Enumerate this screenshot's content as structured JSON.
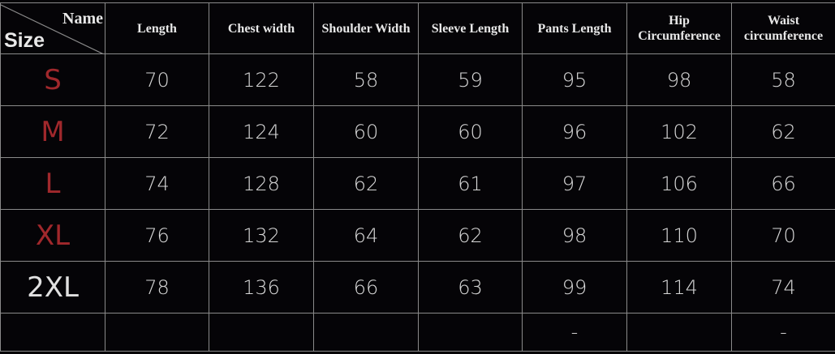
{
  "header": {
    "corner_name": "Name",
    "corner_size": "Size",
    "columns": [
      "Length",
      "Chest width",
      "Shoulder Width",
      "Sleeve Length",
      "Pants Length",
      "Hip Circumference",
      "Waist circumference"
    ]
  },
  "rows": [
    {
      "size": "S",
      "color": "#a0282c",
      "values": [
        "70",
        "122",
        "58",
        "59",
        "95",
        "98",
        "58"
      ]
    },
    {
      "size": "M",
      "color": "#a0282c",
      "values": [
        "72",
        "124",
        "60",
        "60",
        "96",
        "102",
        "62"
      ]
    },
    {
      "size": "L",
      "color": "#a0282c",
      "values": [
        "74",
        "128",
        "62",
        "61",
        "97",
        "106",
        "66"
      ]
    },
    {
      "size": "XL",
      "color": "#a0282c",
      "values": [
        "76",
        "132",
        "64",
        "62",
        "98",
        "110",
        "70"
      ]
    },
    {
      "size": "2XL",
      "color": "#e0e0e0",
      "values": [
        "78",
        "136",
        "66",
        "63",
        "99",
        "114",
        "74"
      ]
    },
    {
      "size": "",
      "color": "#e0e0e0",
      "values": [
        "",
        "",
        "",
        "",
        "-",
        "",
        "-"
      ]
    }
  ]
}
